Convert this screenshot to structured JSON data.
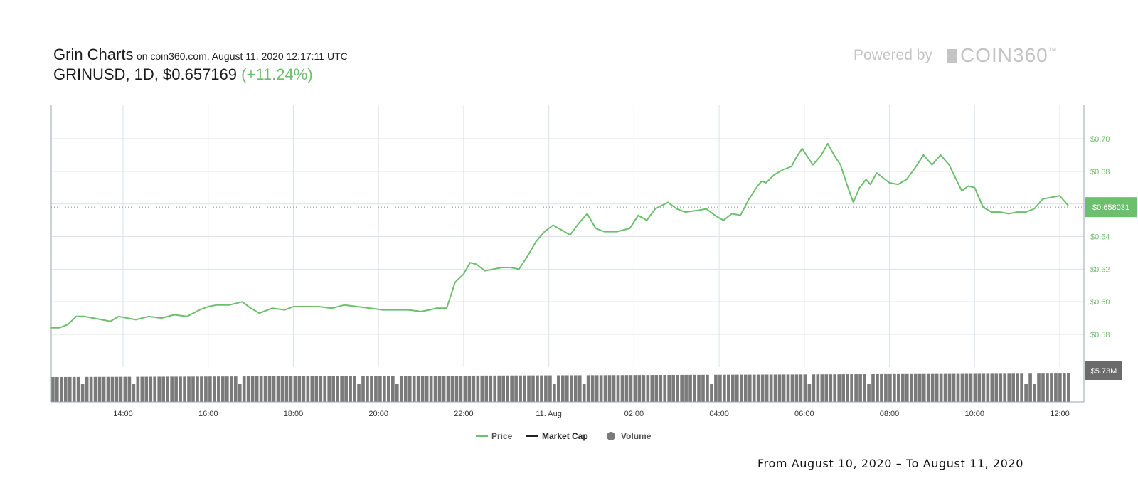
{
  "header": {
    "title": "Grin Charts",
    "subtitle": "on coin360.com, August 11, 2020 12:17:11 UTC",
    "pair_line": "GRINUSD, 1D, $0.657169",
    "change": "(+11.24%)",
    "powered_by": "Powered by",
    "brand": "COIN360",
    "brand_tm": "™"
  },
  "footer": {
    "range": "From August 10, 2020 – To August 11, 2020"
  },
  "colors": {
    "price": "#6cbf6c",
    "market_cap": "#222222",
    "volume": "#7a7a7a",
    "grid": "#dde3ea"
  },
  "chart_data": {
    "type": "line",
    "x_ticks": [
      "14:00",
      "16:00",
      "18:00",
      "20:00",
      "22:00",
      "11. Aug",
      "02:00",
      "04:00",
      "06:00",
      "08:00",
      "10:00",
      "12:00"
    ],
    "y_ticks": [
      "$0.70",
      "$0.68",
      "$0.66",
      "$0.64",
      "$0.62",
      "$0.60",
      "$0.58"
    ],
    "ylim": [
      0.56,
      0.72
    ],
    "x_range_hours": [
      12.3,
      36.3
    ],
    "current_price_label": "$0.658031",
    "current_price": 0.658031,
    "volume_label": "$5.73M",
    "legend": [
      "Price",
      "Market Cap",
      "Volume"
    ],
    "legend_placement": "bottom-center",
    "grid": true,
    "series": [
      {
        "name": "Price",
        "x_hours": [
          12.3,
          12.5,
          12.7,
          12.9,
          13.1,
          13.3,
          13.5,
          13.7,
          13.9,
          14.1,
          14.3,
          14.6,
          14.9,
          15.2,
          15.5,
          15.8,
          16.0,
          16.2,
          16.5,
          16.8,
          17.0,
          17.2,
          17.5,
          17.8,
          18.0,
          18.3,
          18.6,
          18.9,
          19.2,
          19.5,
          19.8,
          20.1,
          20.4,
          20.7,
          21.0,
          21.2,
          21.35,
          21.45,
          21.6,
          21.8,
          22.0,
          22.15,
          22.3,
          22.5,
          22.7,
          22.9,
          23.1,
          23.3,
          23.4,
          23.5,
          23.7,
          23.9,
          24.1,
          24.3,
          24.5,
          24.7,
          24.9,
          25.1,
          25.3,
          25.6,
          25.9,
          26.1,
          26.3,
          26.5,
          26.8,
          27.0,
          27.2,
          27.5,
          27.7,
          27.9,
          28.1,
          28.3,
          28.5,
          28.7,
          28.9,
          29.0,
          29.1,
          29.3,
          29.5,
          29.7,
          29.8,
          29.95,
          30.05,
          30.2,
          30.3,
          30.4,
          30.55,
          30.7,
          30.85,
          31.0,
          31.15,
          31.3,
          31.45,
          31.55,
          31.7,
          31.85,
          32.0,
          32.2,
          32.4,
          32.6,
          32.7,
          32.8,
          33.0,
          33.2,
          33.4,
          33.55,
          33.7,
          33.85,
          34.0,
          34.2,
          34.4,
          34.6,
          34.8,
          35.0,
          35.2,
          35.4,
          35.6,
          35.8,
          36.0,
          36.1,
          36.2
        ],
        "values": [
          0.584,
          0.584,
          0.586,
          0.591,
          0.591,
          0.59,
          0.589,
          0.588,
          0.591,
          0.59,
          0.589,
          0.591,
          0.59,
          0.592,
          0.591,
          0.595,
          0.597,
          0.598,
          0.598,
          0.6,
          0.596,
          0.593,
          0.596,
          0.595,
          0.597,
          0.597,
          0.597,
          0.596,
          0.598,
          0.597,
          0.596,
          0.595,
          0.595,
          0.595,
          0.594,
          0.595,
          0.596,
          0.596,
          0.596,
          0.612,
          0.617,
          0.624,
          0.623,
          0.619,
          0.62,
          0.621,
          0.621,
          0.62,
          0.624,
          0.628,
          0.637,
          0.643,
          0.647,
          0.644,
          0.641,
          0.648,
          0.654,
          0.645,
          0.643,
          0.643,
          0.645,
          0.653,
          0.65,
          0.657,
          0.661,
          0.657,
          0.655,
          0.656,
          0.657,
          0.653,
          0.65,
          0.654,
          0.653,
          0.663,
          0.671,
          0.674,
          0.673,
          0.678,
          0.681,
          0.683,
          0.688,
          0.694,
          0.69,
          0.684,
          0.687,
          0.69,
          0.697,
          0.69,
          0.684,
          0.672,
          0.661,
          0.67,
          0.675,
          0.672,
          0.679,
          0.676,
          0.673,
          0.672,
          0.675,
          0.682,
          0.686,
          0.69,
          0.684,
          0.69,
          0.684,
          0.676,
          0.668,
          0.671,
          0.67,
          0.658,
          0.655,
          0.655,
          0.654,
          0.655,
          0.655,
          0.657,
          0.663,
          0.664,
          0.665,
          0.662,
          0.659
        ]
      },
      {
        "name": "Market Cap",
        "values": []
      },
      {
        "name": "Volume",
        "values": []
      }
    ]
  }
}
